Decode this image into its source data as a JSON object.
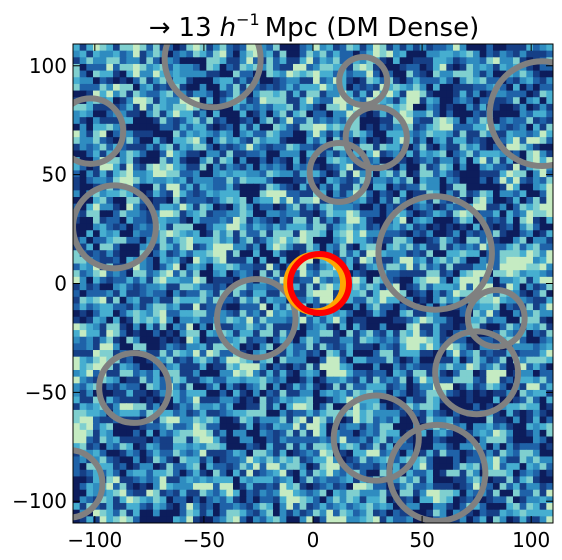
{
  "chart_data": {
    "type": "heatmap",
    "title_arrow": "→",
    "title_number": "13",
    "title_h": "h",
    "title_exp": "−1",
    "title_rest": "Mpc (DM Dense)",
    "xlabel": "",
    "ylabel": "",
    "xlim": [
      -110,
      110
    ],
    "ylim": [
      -110,
      110
    ],
    "xticks": [
      -100,
      -50,
      0,
      50,
      100
    ],
    "yticks": [
      -100,
      -50,
      0,
      50,
      100
    ],
    "xtick_labels": [
      "−100",
      "−50",
      "0",
      "50",
      "100"
    ],
    "ytick_labels": [
      "−100",
      "−50",
      "0",
      "50",
      "100"
    ],
    "grid": false,
    "colormap": [
      "#0d1d5c",
      "#163f86",
      "#1f62a8",
      "#2f8cc0",
      "#46aed0",
      "#7fcfcf",
      "#c5ebc2"
    ],
    "voids": [
      {
        "x": -46,
        "y": 103,
        "r": 22
      },
      {
        "x": 23,
        "y": 93,
        "r": 11
      },
      {
        "x": -102,
        "y": 70,
        "r": 15
      },
      {
        "x": 29,
        "y": 67,
        "r": 14
      },
      {
        "x": 12,
        "y": 51,
        "r": 13.5
      },
      {
        "x": 105,
        "y": 78,
        "r": 24
      },
      {
        "x": -91,
        "y": 26,
        "r": 19
      },
      {
        "x": 56,
        "y": 14,
        "r": 26
      },
      {
        "x": -26,
        "y": -16,
        "r": 18
      },
      {
        "x": 84,
        "y": -16,
        "r": 13
      },
      {
        "x": 75,
        "y": -41,
        "r": 19
      },
      {
        "x": -82,
        "y": -48,
        "r": 16
      },
      {
        "x": 29,
        "y": -71,
        "r": 19.5
      },
      {
        "x": 57,
        "y": -87,
        "r": 22
      },
      {
        "x": -112,
        "y": -92,
        "r": 15.5
      }
    ],
    "highlight": [
      {
        "x": 1,
        "y": 0,
        "r": 13,
        "color": "#ffa500"
      },
      {
        "x": 3,
        "y": 0,
        "r": 13.5,
        "color": "#ff0000"
      }
    ],
    "void_color": "#808080"
  }
}
